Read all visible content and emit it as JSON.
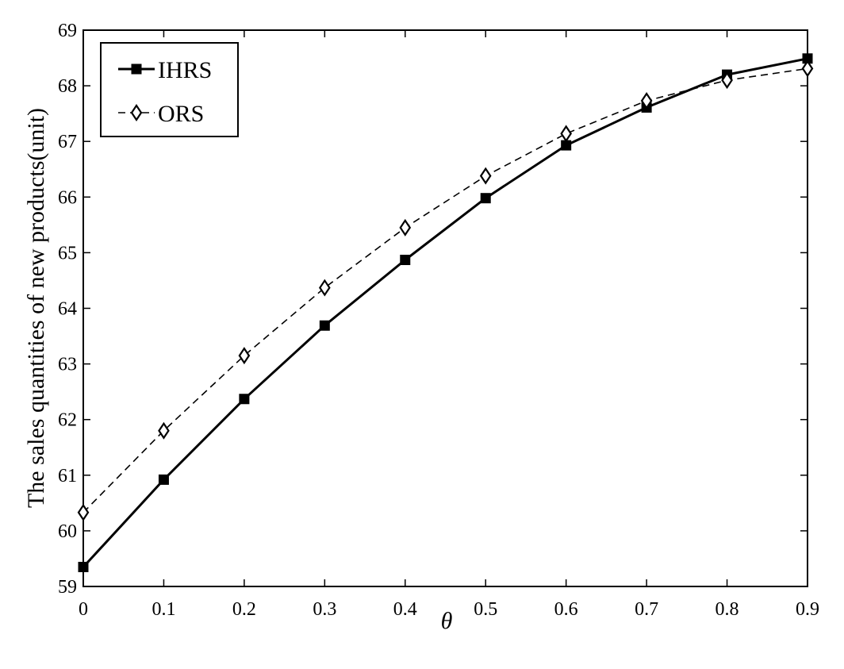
{
  "chart_data": {
    "type": "line",
    "xlabel": "θ",
    "ylabel": "The sales quantities of new products(unit)",
    "xlim": [
      0,
      0.9
    ],
    "ylim": [
      59,
      69
    ],
    "x": [
      0,
      0.1,
      0.2,
      0.3,
      0.4,
      0.5,
      0.6,
      0.7,
      0.8,
      0.9
    ],
    "x_tick_labels": [
      "0",
      "0.1",
      "0.2",
      "0.3",
      "0.4",
      "0.5",
      "0.6",
      "0.7",
      "0.8",
      "0.9"
    ],
    "y_tick_labels": [
      "59",
      "60",
      "61",
      "62",
      "63",
      "64",
      "65",
      "66",
      "67",
      "68",
      "69"
    ],
    "grid": false,
    "legend_position": "top-left",
    "series": [
      {
        "name": "IHRS",
        "values": [
          59.35,
          60.92,
          62.37,
          63.69,
          64.87,
          65.98,
          66.93,
          67.61,
          68.2,
          68.49
        ],
        "color": "#000000",
        "line_style": "solid",
        "marker": "filled-square"
      },
      {
        "name": "ORS",
        "values": [
          60.33,
          61.8,
          63.15,
          64.37,
          65.45,
          66.38,
          67.14,
          67.73,
          68.1,
          68.31
        ],
        "color": "#000000",
        "line_style": "dashed",
        "marker": "open-diamond"
      }
    ]
  }
}
